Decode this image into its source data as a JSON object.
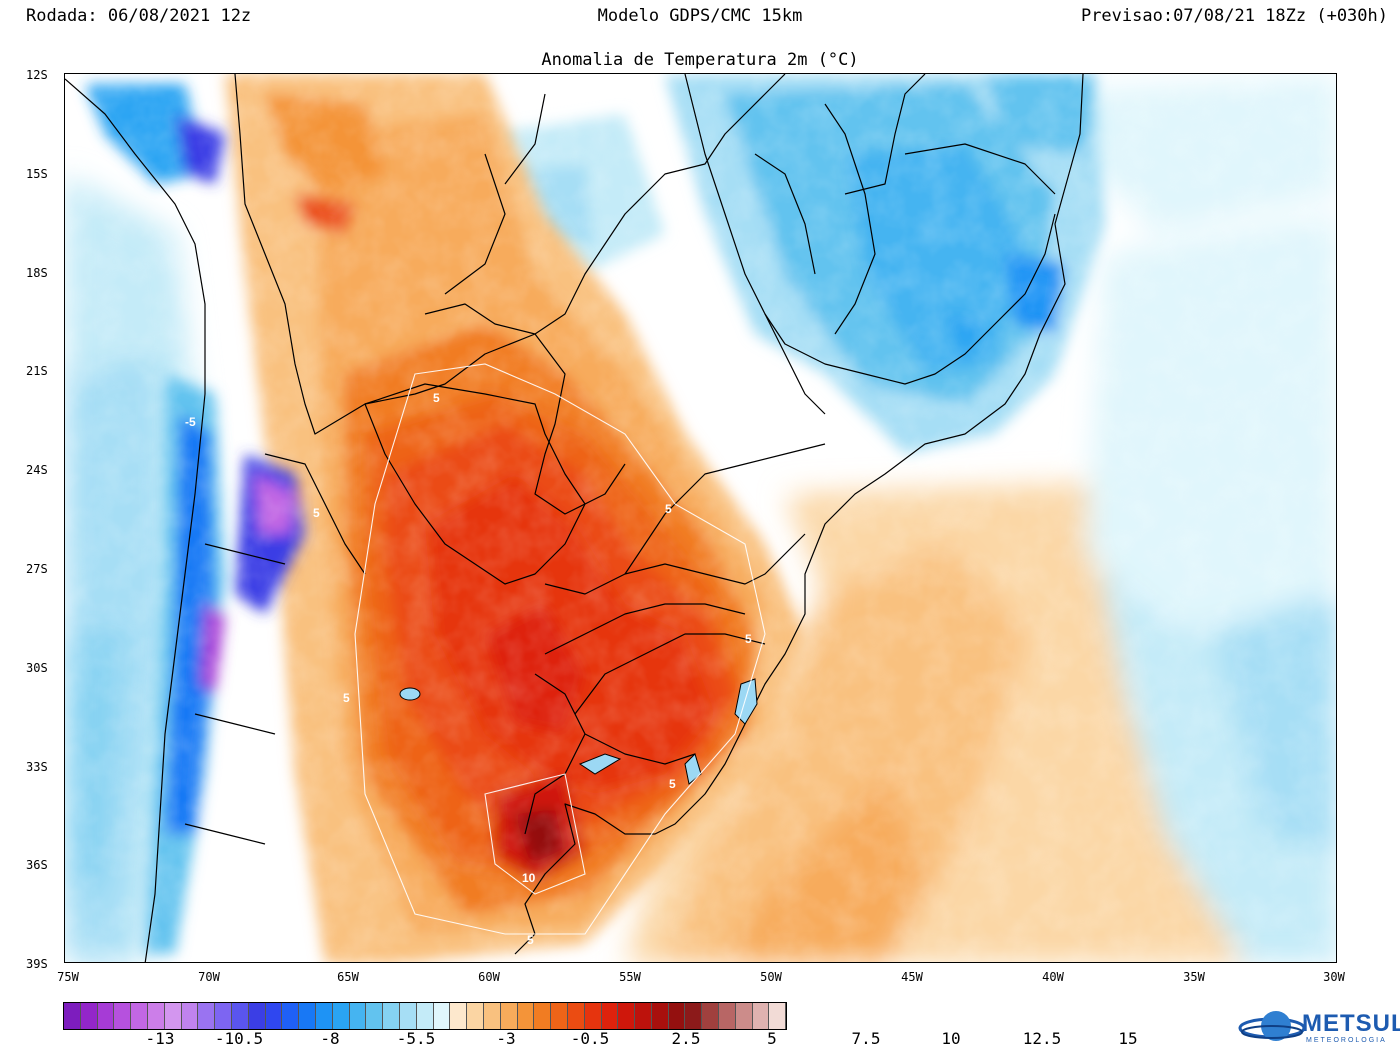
{
  "header": {
    "run": "Rodada: 06/08/2021 12z",
    "model": "Modelo GDPS/CMC 15km",
    "forecast": "Previsao:07/08/21 18Zz (+030h)"
  },
  "map": {
    "title": "Anomalia de Temperatura 2m (°C)",
    "lat_labels": [
      "12S",
      "15S",
      "18S",
      "21S",
      "24S",
      "27S",
      "30S",
      "33S",
      "36S",
      "39S"
    ],
    "lon_labels": [
      "75W",
      "70W",
      "65W",
      "60W",
      "55W",
      "50W",
      "45W",
      "40W",
      "35W",
      "30W"
    ],
    "contour_labels": [
      "5",
      "5",
      "5",
      "5",
      "5",
      "5",
      "10",
      "-5",
      "5"
    ]
  },
  "colorbar": {
    "colors": [
      "#7d1dbe",
      "#9326c9",
      "#a63bd6",
      "#b651de",
      "#c267e4",
      "#cc7ee9",
      "#d396ef",
      "#c083ee",
      "#9a73f1",
      "#7d65f2",
      "#5a55ee",
      "#3b3ee5",
      "#2f47f0",
      "#1f60f6",
      "#1878f5",
      "#1e93f5",
      "#2aa4f3",
      "#45b4f1",
      "#62c3ef",
      "#85d2f2",
      "#a6def5",
      "#c4ebf8",
      "#e0f6fc",
      "#fde8cd",
      "#fbd5a3",
      "#f9c17f",
      "#f7ab5b",
      "#f49439",
      "#f17c22",
      "#ee6418",
      "#eb4c12",
      "#e6340e",
      "#de220c",
      "#cf170b",
      "#bd120c",
      "#a8100d",
      "#94100f",
      "#8c1a1a",
      "#a0403e",
      "#b86665",
      "#cc8c8a",
      "#dfb2b0",
      "#f2dbd6"
    ],
    "labels": [
      "-13",
      "-10.5",
      "-8",
      "-5.5",
      "-3",
      "-0.5",
      "2.5",
      "5",
      "7.5",
      "10",
      "12.5",
      "15"
    ]
  },
  "logo": {
    "name": "METSUL",
    "subtitle": "METEOROLOGIA"
  }
}
